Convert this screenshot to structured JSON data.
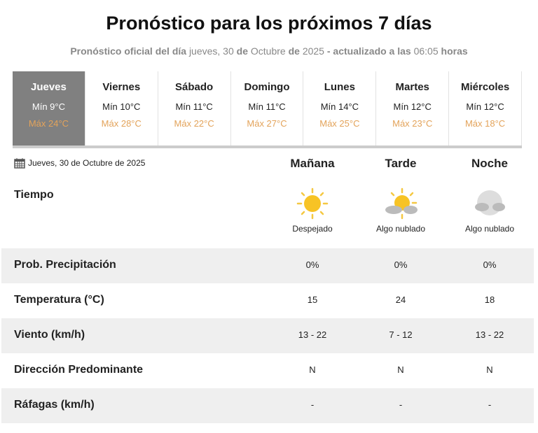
{
  "header": {
    "title": "Pronóstico para los próximos 7 días",
    "subtitle": {
      "p1": "Pronóstico oficial del día",
      "p2": "jueves, 30",
      "p3": "de",
      "p4": "Octubre",
      "p5": "de",
      "p6": "2025",
      "p7": "- actualizado a las",
      "p8": "06:05",
      "p9": "horas"
    }
  },
  "days": [
    {
      "day": "Jueves",
      "min": "Mín 9°C",
      "max": "Máx 24°C"
    },
    {
      "day": "Viernes",
      "min": "Mín 10°C",
      "max": "Máx 28°C"
    },
    {
      "day": "Sábado",
      "min": "Mín 11°C",
      "max": "Máx 22°C"
    },
    {
      "day": "Domingo",
      "min": "Mín 11°C",
      "max": "Máx 27°C"
    },
    {
      "day": "Lunes",
      "min": "Mín 14°C",
      "max": "Máx 25°C"
    },
    {
      "day": "Martes",
      "min": "Mín 12°C",
      "max": "Máx 23°C"
    },
    {
      "day": "Miércoles",
      "min": "Mín 12°C",
      "max": "Máx 18°C"
    }
  ],
  "detail": {
    "date": "Jueves, 30 de Octubre de 2025",
    "periods": [
      "Mañana",
      "Tarde",
      "Noche"
    ],
    "tiempo_label": "Tiempo",
    "conditions": [
      {
        "icon": "sun-icon",
        "text": "Despejado"
      },
      {
        "icon": "partly-cloudy-sun-icon",
        "text": "Algo nublado"
      },
      {
        "icon": "partly-cloudy-moon-icon",
        "text": "Algo nublado"
      }
    ],
    "rows": [
      {
        "label": "Prob. Precipitación",
        "values": [
          "0%",
          "0%",
          "0%"
        ]
      },
      {
        "label": "Temperatura (°C)",
        "values": [
          "15",
          "24",
          "18"
        ]
      },
      {
        "label": "Viento (km/h)",
        "values": [
          "13 - 22",
          "7 - 12",
          "13 - 22"
        ]
      },
      {
        "label": "Dirección Predominante",
        "values": [
          "N",
          "N",
          "N"
        ]
      },
      {
        "label": "Ráfagas (km/h)",
        "values": [
          "-",
          "-",
          "-"
        ]
      }
    ]
  },
  "colors": {
    "active_tab": "#808080",
    "max_temp": "#e3a35a",
    "row_alt": "#efefef"
  }
}
